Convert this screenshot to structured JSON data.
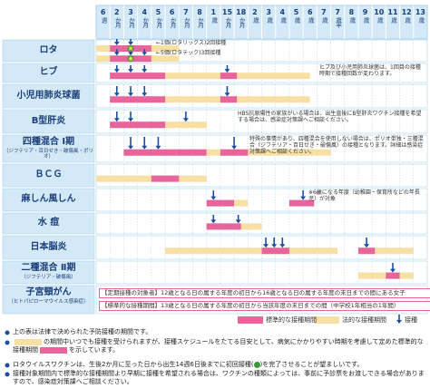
{
  "header": {
    "columns": [
      {
        "num": "6",
        "unit": "週"
      },
      {
        "num": "2",
        "unit": "か月"
      },
      {
        "num": "3",
        "unit": "か月"
      },
      {
        "num": "4",
        "unit": "か月"
      },
      {
        "num": "5",
        "unit": "か月"
      },
      {
        "num": "6",
        "unit": "か月"
      },
      {
        "num": "7",
        "unit": "か月"
      },
      {
        "num": "8",
        "unit": "か月"
      },
      {
        "num": "1",
        "unit": "歳"
      },
      {
        "num": "15",
        "unit": "か月"
      },
      {
        "num": "18",
        "unit": "か月"
      },
      {
        "num": "2",
        "unit": "歳"
      },
      {
        "num": "3",
        "unit": "歳"
      },
      {
        "num": "4",
        "unit": "歳"
      },
      {
        "num": "5",
        "unit": "歳"
      },
      {
        "num": "6",
        "unit": "歳"
      },
      {
        "num": "7",
        "unit": "歳"
      },
      {
        "num": "7",
        "unit": "歳半"
      },
      {
        "num": "8",
        "unit": "歳"
      },
      {
        "num": "9",
        "unit": "歳"
      },
      {
        "num": "10",
        "unit": "歳"
      },
      {
        "num": "11",
        "unit": "歳"
      },
      {
        "num": "12",
        "unit": "歳"
      },
      {
        "num": "13",
        "unit": "歳"
      }
    ]
  },
  "vaccines": [
    {
      "name": "ロタ",
      "notes": [
        "←1価(ロタリックス)2回接種",
        "←5価(ロタテック)3回接種"
      ]
    },
    {
      "name": "ヒブ",
      "notes": [
        "ヒブ及び小児用肺炎球菌は、1回目の接種時期で接種回数が変わります。"
      ]
    },
    {
      "name": "小児用肺炎球菌"
    },
    {
      "name": "B型肝炎",
      "notes": [
        "HBS抗原陽性の家族がいる場合は、出生直後にB型肝炎ワクチン接種を希望する場合は、感染症対策課へご相談ください。"
      ]
    },
    {
      "name": "四種混合 Ⅰ期",
      "sub": "（ジフテリア・百日せき・破傷風・ポリオ）",
      "notes": [
        "特殊の事情があり、四種混合を使用しない場合は、ポリオ単独・三種混合（ジフテリア・百日せき・破傷風）の接種となります。詳細は感染症対策課へご相談ください。"
      ]
    },
    {
      "name": "ＢＣＧ"
    },
    {
      "name": "麻しん風しん",
      "marker": "※",
      "notes": [
        "※6歳になる年度（幼稚園・保育所などの年長児）が対象"
      ]
    },
    {
      "name": "水 痘"
    },
    {
      "name": "日本脳炎"
    },
    {
      "name": "二種混合 Ⅱ期",
      "sub": "（ジフテリア・破傷風）"
    },
    {
      "name": "子宮頸がん",
      "sub": "（ヒトパピローマウイルス感染症）",
      "notes": [
        "【定期接種の対象者】12歳となる日の属する年度の初日から16歳となる日の属する年度の末日までの間にある女子",
        "【標準的な接種期間】13歳となる日の属する年度の初日から当該年度の末日までの間（中学校1年相当の1年間）"
      ]
    }
  ],
  "legend": {
    "standard": "標準的な接種期間",
    "legal": "法的な接種期間",
    "dose": "接種"
  },
  "footnotes": [
    [
      "上の表は法律で決められた予防接種の期間です。"
    ],
    [
      "の期間中いつでも接種を受けられますが、接種スケジュールをたてる目安として、病気にかかりやすい時期を考慮して定めた標準的な接種期間",
      "を示しています。"
    ],
    [
      "ロタウイルスワクチンは、生後2か月に至った日から出生14週6日後までに初回接種(",
      ")を完了させることが望ましいです。"
    ],
    [
      "接種対象期間内で標準的な接種期間より早期に接種を希望される場合は、ワクチンの種類によっては、事前に予診票をお渡しできる場合がありますので、感染症対策課へご相談ください。"
    ]
  ]
}
